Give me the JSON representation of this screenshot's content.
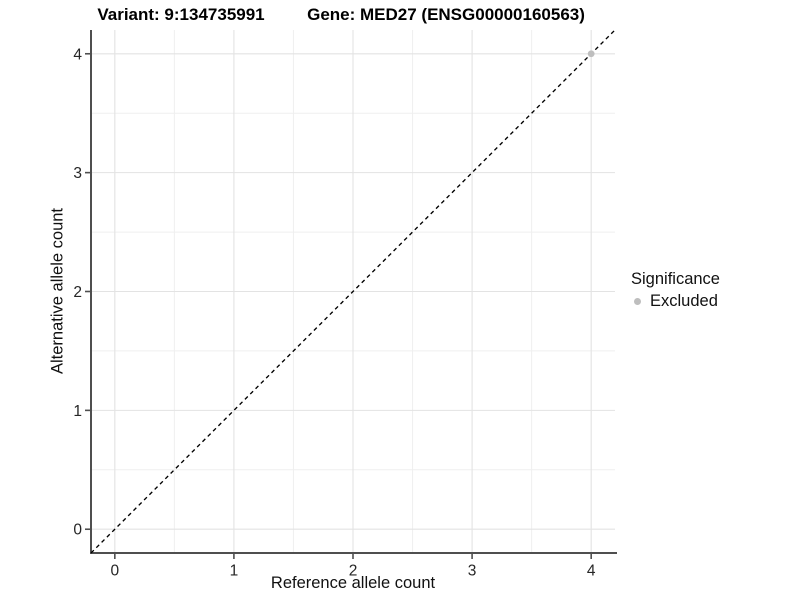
{
  "chart_data": {
    "type": "scatter",
    "titles": [
      "Variant: 9:134735991",
      "Gene: MED27 (ENSG00000160563)"
    ],
    "xlabel": "Reference allele count",
    "ylabel": "Alternative allele count",
    "xlim": [
      -0.2,
      4.2
    ],
    "ylim": [
      -0.2,
      4.2
    ],
    "x_major_ticks": [
      0,
      1,
      2,
      3,
      4
    ],
    "y_major_ticks": [
      0,
      1,
      2,
      3,
      4
    ],
    "x_minor_ticks": [
      0.5,
      1.5,
      2.5,
      3.5
    ],
    "y_minor_ticks": [
      0.5,
      1.5,
      2.5,
      3.5
    ],
    "grid": true,
    "reference_line": {
      "equation": "y = x",
      "style": "dashed",
      "from": [
        -0.2,
        -0.2
      ],
      "to": [
        4.2,
        4.2
      ]
    },
    "points": [
      {
        "x": 4,
        "y": 4,
        "series": "Excluded"
      }
    ],
    "legend": {
      "title": "Significance",
      "position": "right",
      "entries": [
        {
          "label": "Excluded",
          "marker": "circle",
          "color": "#bebebe"
        }
      ]
    },
    "colors": {
      "background": "#ffffff",
      "point": "#bebebe",
      "reference_line": "#000000",
      "axis_line": "#4f4f4f",
      "grid_major": "#e3e3e3",
      "grid_minor": "#efefef",
      "tick_text": "#262626"
    }
  }
}
